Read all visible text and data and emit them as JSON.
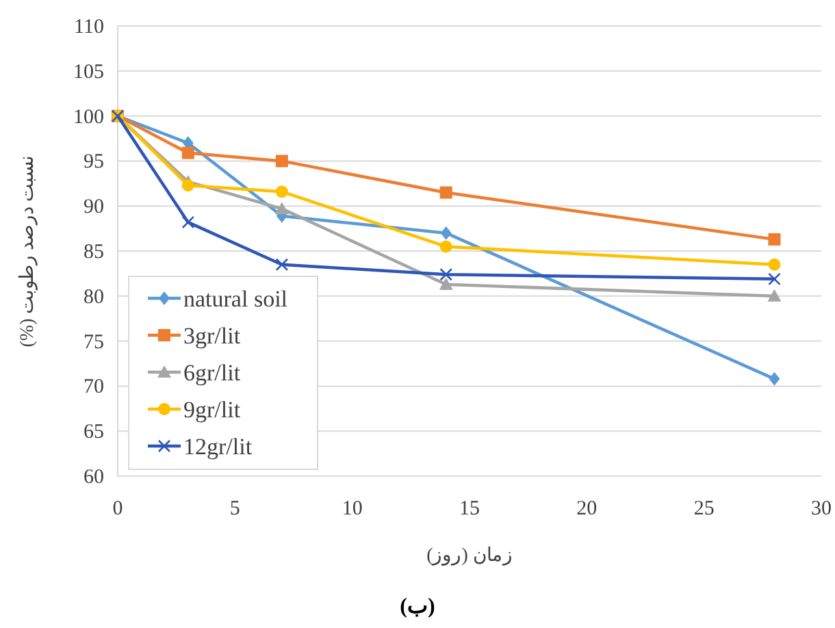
{
  "chart_data": {
    "type": "line",
    "xlabel": "زمان (روز)",
    "ylabel": "نسبت درصد رطوبت (%)",
    "x": [
      0,
      3,
      7,
      14,
      28
    ],
    "series": [
      {
        "name": "natural soil",
        "color": "#5b9bd5",
        "marker": "diamond",
        "values": [
          100,
          97,
          88.9,
          87,
          70.8
        ]
      },
      {
        "name": "3gr/lit",
        "color": "#ed7d31",
        "marker": "square",
        "values": [
          100,
          95.9,
          95,
          91.5,
          86.3
        ]
      },
      {
        "name": "6gr/lit",
        "color": "#a5a5a5",
        "marker": "triangle",
        "values": [
          100,
          92.7,
          89.7,
          81.3,
          80
        ]
      },
      {
        "name": "9gr/lit",
        "color": "#ffc000",
        "marker": "circle",
        "values": [
          100,
          92.3,
          91.6,
          85.5,
          83.5
        ]
      },
      {
        "name": "12gr/lit",
        "color": "#2f55b8",
        "marker": "cross",
        "values": [
          100,
          88.2,
          83.5,
          82.4,
          81.9
        ]
      }
    ],
    "xlim": [
      0,
      30
    ],
    "xticks": [
      0,
      5,
      10,
      15,
      20,
      25,
      30
    ],
    "ylim": [
      60,
      110
    ],
    "yticks": [
      60,
      65,
      70,
      75,
      80,
      85,
      90,
      95,
      100,
      105,
      110
    ],
    "grid": "y",
    "legend": "bottom left",
    "line_style": "solid",
    "annotations": [
      "(ب)"
    ]
  }
}
